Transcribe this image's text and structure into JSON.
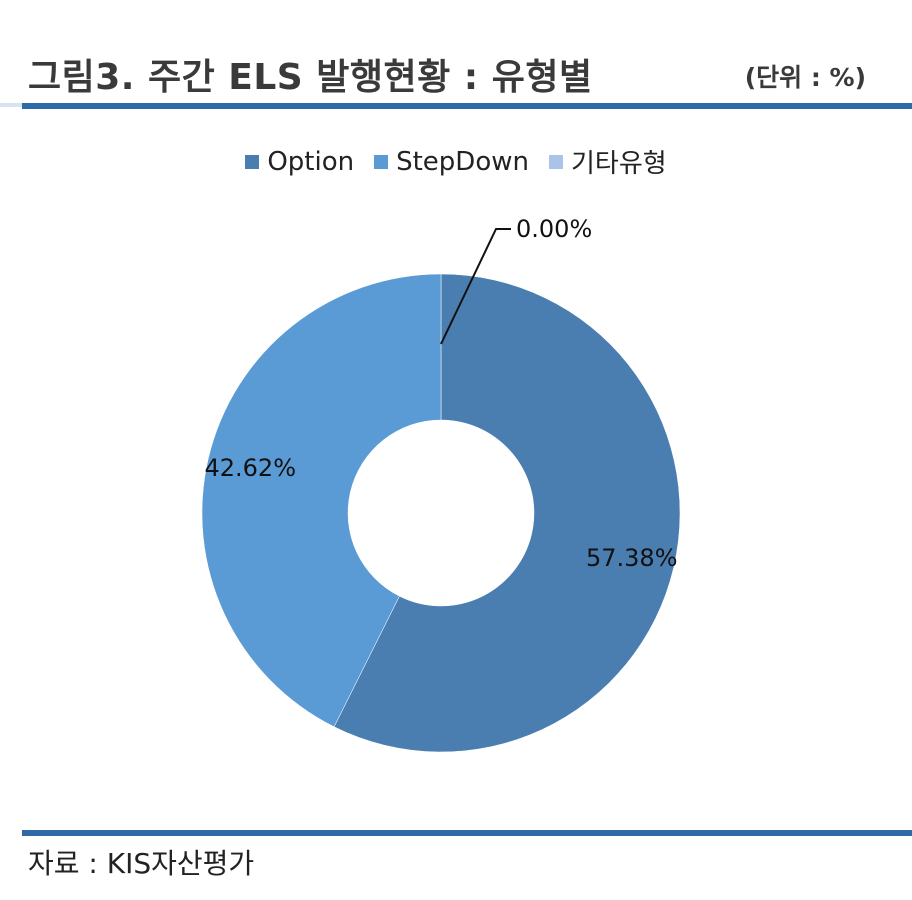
{
  "header": {
    "title": "그림3. 주간 ELS 발행현황 : 유형별",
    "unit": "(단위 : %)"
  },
  "footer": {
    "source": "자료 : KIS자산평가"
  },
  "colors": {
    "accent_rule": "#2e6aa8",
    "Option": "#4a7eb0",
    "StepDown": "#5b9bd5",
    "기타유형": "#a9c4e6"
  },
  "chart_data": {
    "type": "pie",
    "variant": "donut",
    "title": "",
    "categories": [
      "Option",
      "StepDown",
      "기타유형"
    ],
    "values": [
      57.38,
      42.62,
      0.0
    ],
    "labels": [
      "57.38%",
      "42.62%",
      "0.00%"
    ],
    "legend": {
      "position": "top",
      "entries": [
        "Option",
        "StepDown",
        "기타유형"
      ]
    }
  }
}
